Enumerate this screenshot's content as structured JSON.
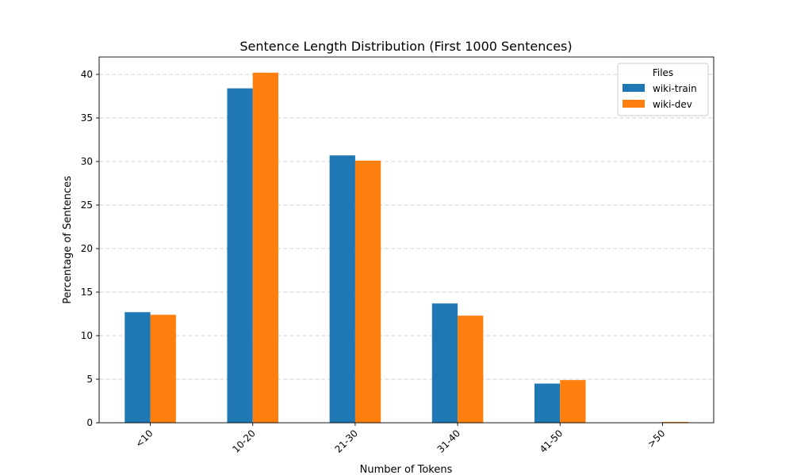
{
  "chart_data": {
    "type": "bar",
    "title": "Sentence Length Distribution (First 1000 Sentences)",
    "xlabel": "Number of Tokens",
    "ylabel": "Percentage of Sentences",
    "categories": [
      "<10",
      "10-20",
      "21-30",
      "31-40",
      "41-50",
      ">50"
    ],
    "series": [
      {
        "name": "wiki-train",
        "color": "#1f77b4",
        "values": [
          12.7,
          38.4,
          30.7,
          13.7,
          4.5,
          0.0
        ]
      },
      {
        "name": "wiki-dev",
        "color": "#ff7f0e",
        "values": [
          12.4,
          40.2,
          30.1,
          12.3,
          4.9,
          0.1
        ]
      }
    ],
    "ylim": [
      0,
      42
    ],
    "yticks": [
      0,
      5,
      10,
      15,
      20,
      25,
      30,
      35,
      40
    ],
    "grid": "y-dashed",
    "legend": {
      "title": "Files",
      "placement": "top-right"
    },
    "xtick_rotation": 45
  }
}
